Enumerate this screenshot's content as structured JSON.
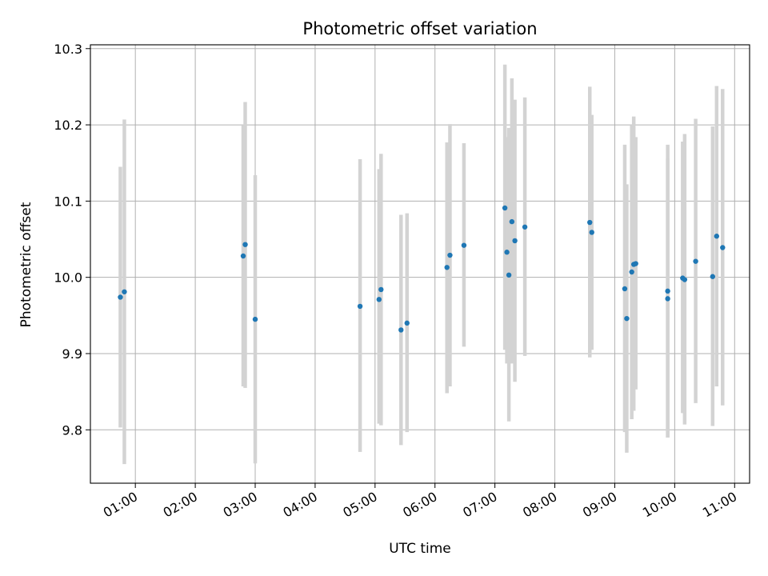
{
  "chart_data": {
    "type": "scatter",
    "title": "Photometric offset variation",
    "xlabel": "UTC time",
    "ylabel": "Photometric offset",
    "xlim": [
      "00:15",
      "11:15"
    ],
    "ylim": [
      9.73,
      10.305
    ],
    "grid": true,
    "x_ticks": [
      "01:00",
      "02:00",
      "03:00",
      "04:00",
      "05:00",
      "06:00",
      "07:00",
      "08:00",
      "09:00",
      "10:00",
      "11:00"
    ],
    "y_ticks": [
      9.8,
      9.9,
      10.0,
      10.1,
      10.2,
      10.3
    ],
    "y_tick_labels": [
      "9.8",
      "9.9",
      "10.0",
      "10.1",
      "10.2",
      "10.3"
    ],
    "colors": {
      "point": "#1f77b4",
      "errorbar": "#d3d3d3",
      "grid": "#b0b0b0"
    },
    "series": [
      {
        "points": [
          {
            "x": "00:45",
            "y": 9.974,
            "ylow": 9.803,
            "yhigh": 10.145
          },
          {
            "x": "00:49",
            "y": 9.981,
            "ylow": 9.755,
            "yhigh": 10.207
          },
          {
            "x": "02:48",
            "y": 10.028,
            "ylow": 9.857,
            "yhigh": 10.199
          },
          {
            "x": "02:50",
            "y": 10.043,
            "ylow": 9.855,
            "yhigh": 10.23
          },
          {
            "x": "03:00",
            "y": 9.945,
            "ylow": 9.756,
            "yhigh": 10.134
          },
          {
            "x": "04:45",
            "y": 9.962,
            "ylow": 9.771,
            "yhigh": 10.155
          },
          {
            "x": "05:04",
            "y": 9.971,
            "ylow": 9.808,
            "yhigh": 10.142
          },
          {
            "x": "05:06",
            "y": 9.984,
            "ylow": 9.806,
            "yhigh": 10.162
          },
          {
            "x": "05:26",
            "y": 9.931,
            "ylow": 9.78,
            "yhigh": 10.082
          },
          {
            "x": "05:32",
            "y": 9.94,
            "ylow": 9.797,
            "yhigh": 10.084
          },
          {
            "x": "06:12",
            "y": 10.013,
            "ylow": 9.848,
            "yhigh": 10.177
          },
          {
            "x": "06:15",
            "y": 10.029,
            "ylow": 9.857,
            "yhigh": 10.201
          },
          {
            "x": "06:29",
            "y": 10.042,
            "ylow": 9.909,
            "yhigh": 10.176
          },
          {
            "x": "07:10",
            "y": 10.091,
            "ylow": 9.905,
            "yhigh": 10.279
          },
          {
            "x": "07:12",
            "y": 10.033,
            "ylow": 9.887,
            "yhigh": 10.184
          },
          {
            "x": "07:14",
            "y": 10.003,
            "ylow": 9.811,
            "yhigh": 10.196
          },
          {
            "x": "07:17",
            "y": 10.073,
            "ylow": 9.887,
            "yhigh": 10.261
          },
          {
            "x": "07:20",
            "y": 10.048,
            "ylow": 9.863,
            "yhigh": 10.233
          },
          {
            "x": "07:30",
            "y": 10.066,
            "ylow": 9.897,
            "yhigh": 10.236
          },
          {
            "x": "08:35",
            "y": 10.072,
            "ylow": 9.895,
            "yhigh": 10.25
          },
          {
            "x": "08:37",
            "y": 10.059,
            "ylow": 9.905,
            "yhigh": 10.213
          },
          {
            "x": "09:10",
            "y": 9.985,
            "ylow": 9.797,
            "yhigh": 10.174
          },
          {
            "x": "09:12",
            "y": 9.946,
            "ylow": 9.77,
            "yhigh": 10.122
          },
          {
            "x": "09:17",
            "y": 10.007,
            "ylow": 9.814,
            "yhigh": 10.2
          },
          {
            "x": "09:19",
            "y": 10.017,
            "ylow": 9.825,
            "yhigh": 10.211
          },
          {
            "x": "09:21",
            "y": 10.018,
            "ylow": 9.853,
            "yhigh": 10.184
          },
          {
            "x": "09:53",
            "y": 9.972,
            "ylow": 9.79,
            "yhigh": 10.156
          },
          {
            "x": "09:53",
            "y": 9.982,
            "ylow": 9.79,
            "yhigh": 10.174
          },
          {
            "x": "10:08",
            "y": 9.999,
            "ylow": 9.822,
            "yhigh": 10.178
          },
          {
            "x": "10:10",
            "y": 9.997,
            "ylow": 9.807,
            "yhigh": 10.188
          },
          {
            "x": "10:21",
            "y": 10.021,
            "ylow": 9.835,
            "yhigh": 10.208
          },
          {
            "x": "10:38",
            "y": 10.001,
            "ylow": 9.805,
            "yhigh": 10.198
          },
          {
            "x": "10:42",
            "y": 10.054,
            "ylow": 9.857,
            "yhigh": 10.251
          },
          {
            "x": "10:48",
            "y": 10.039,
            "ylow": 9.832,
            "yhigh": 10.247
          }
        ]
      }
    ]
  }
}
